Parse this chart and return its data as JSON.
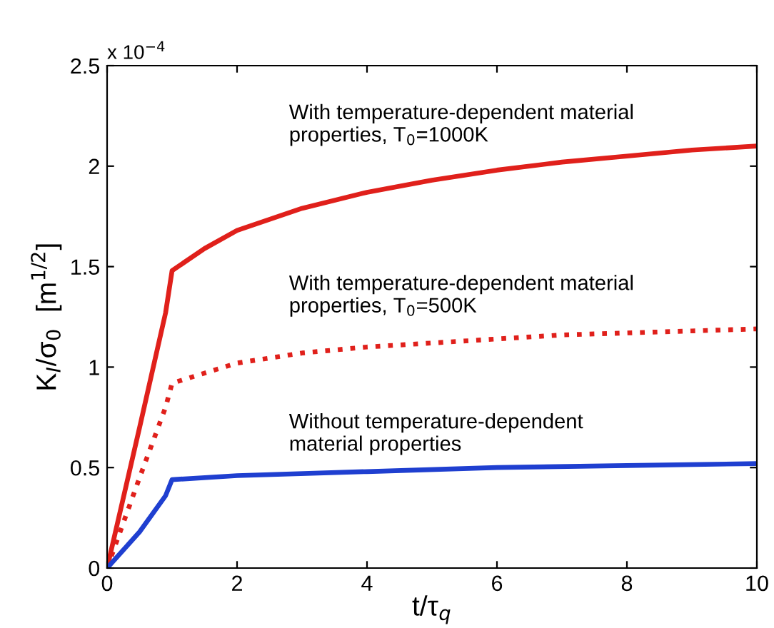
{
  "chart_data": {
    "type": "line",
    "xlabel": "t/τ$_{q}$",
    "ylabel": "K$_{I}$/σ$_{0}$  [m$^{1/2}$]",
    "xlim": [
      0,
      10
    ],
    "ylim": [
      0,
      2.5
    ],
    "xticks": [
      0,
      2,
      4,
      6,
      8,
      10
    ],
    "yticks": [
      0,
      0.5,
      1,
      1.5,
      2,
      2.5
    ],
    "grid": false,
    "legend": false,
    "series": [
      {
        "color": "#e0201b",
        "line_style": "solid",
        "x": [
          0,
          0.5,
          0.9,
          1,
          1.5,
          2,
          3,
          4,
          5,
          6,
          7,
          8,
          9,
          10
        ],
        "values": [
          0,
          0.7,
          1.27,
          1.48,
          1.59,
          1.68,
          1.79,
          1.87,
          1.93,
          1.98,
          2.02,
          2.05,
          2.08,
          2.1
        ]
      },
      {
        "color": "#e0201b",
        "line_style": "dotted",
        "x": [
          0,
          0.5,
          0.9,
          1,
          1.5,
          2,
          3,
          4,
          5,
          6,
          7,
          8,
          9,
          10
        ],
        "values": [
          0,
          0.45,
          0.8,
          0.92,
          0.97,
          1.02,
          1.07,
          1.1,
          1.12,
          1.14,
          1.16,
          1.17,
          1.18,
          1.19
        ]
      },
      {
        "color": "#1f3fd0",
        "line_style": "solid",
        "x": [
          0,
          0.5,
          0.9,
          1,
          2,
          4,
          6,
          8,
          10
        ],
        "values": [
          0,
          0.18,
          0.36,
          0.44,
          0.46,
          0.48,
          0.5,
          0.51,
          0.52
        ]
      }
    ],
    "annotations": [
      "x 10$^{−4}$",
      "With temperature-dependent material\nproperties, T$_{0}$=1000K",
      "With temperature-dependent material\nproperties, T$_{0}$=500K",
      "Without temperature-dependent\nmaterial properties"
    ]
  }
}
